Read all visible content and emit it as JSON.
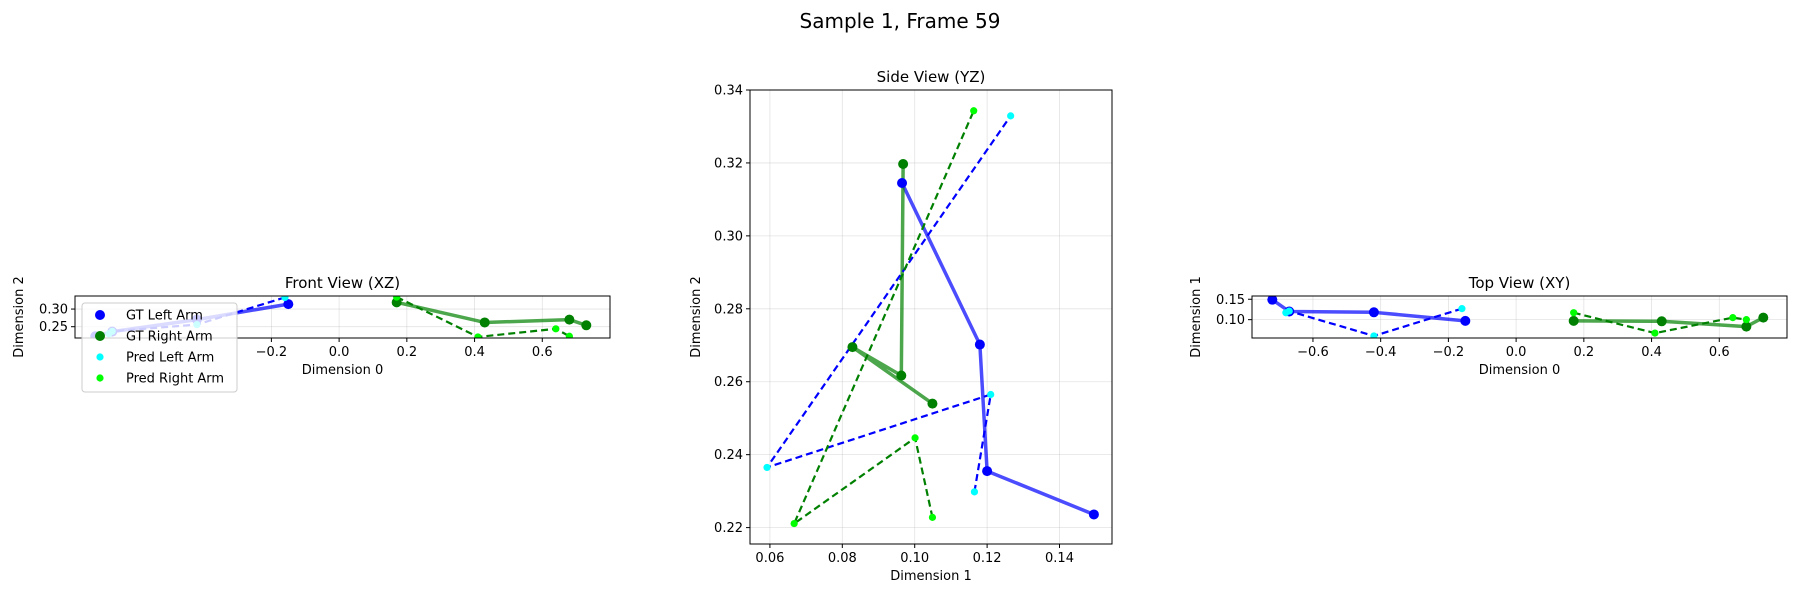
{
  "figure": {
    "suptitle": "Sample 1, Frame 59"
  },
  "colors": {
    "gt_left": "#0000ff",
    "gt_right": "#008000",
    "pred_left": "#00ffff",
    "pred_right": "#00ff00",
    "pred_left_line": "#0000ff",
    "pred_right_line": "#008000"
  },
  "legend": {
    "placement": "upper-left of front view",
    "entries": [
      {
        "label": "GT Left Arm",
        "color": "#0000ff",
        "size": "large"
      },
      {
        "label": "GT Right Arm",
        "color": "#008000",
        "size": "large"
      },
      {
        "label": "Pred Left Arm",
        "color": "#00ffff",
        "size": "small"
      },
      {
        "label": "Pred Right Arm",
        "color": "#00ff00",
        "size": "small"
      }
    ]
  },
  "chart_data": [
    {
      "type": "line",
      "title": "Front View (XZ)",
      "xlabel": "Dimension 0",
      "ylabel": "Dimension 2",
      "xlim": [
        -0.78,
        0.8
      ],
      "ylim": [
        0.218,
        0.337
      ],
      "xticks": [
        -0.2,
        0.0,
        0.2,
        0.4,
        0.6
      ],
      "xtick_labels": [
        "−0.2",
        "0.0",
        "0.2",
        "0.4",
        "0.6"
      ],
      "yticks": [
        0.25,
        0.3
      ],
      "ytick_labels": [
        "0.25",
        "0.30"
      ],
      "grid": true,
      "series": [
        {
          "name": "GT Left Arm",
          "style": "gt",
          "color": "#0000ff",
          "x": [
            -0.15,
            -0.42,
            -0.67,
            -0.72
          ],
          "y": [
            0.314,
            0.27,
            0.236,
            0.223
          ]
        },
        {
          "name": "GT Right Arm",
          "style": "gt",
          "color": "#008000",
          "x": [
            0.17,
            0.43,
            0.68,
            0.73
          ],
          "y": [
            0.319,
            0.262,
            0.27,
            0.254
          ]
        },
        {
          "name": "Pred Left Arm",
          "style": "pred",
          "color": "#00ffff",
          "line_color": "#0000ff",
          "x": [
            -0.16,
            -0.42,
            -0.67,
            -0.68
          ],
          "y": [
            0.333,
            0.256,
            0.237,
            0.23
          ]
        },
        {
          "name": "Pred Right Arm",
          "style": "pred",
          "color": "#00ff00",
          "line_color": "#008000",
          "x": [
            0.17,
            0.41,
            0.64,
            0.68
          ],
          "y": [
            0.334,
            0.221,
            0.244,
            0.223
          ]
        }
      ]
    },
    {
      "type": "line",
      "title": "Side View (YZ)",
      "xlabel": "Dimension 1",
      "ylabel": "Dimension 2",
      "xlim": [
        0.0545,
        0.1545
      ],
      "ylim": [
        0.2155,
        0.34
      ],
      "xticks": [
        0.06,
        0.08,
        0.1,
        0.12,
        0.14
      ],
      "xtick_labels": [
        "0.06",
        "0.08",
        "0.10",
        "0.12",
        "0.14"
      ],
      "yticks": [
        0.22,
        0.24,
        0.26,
        0.28,
        0.3,
        0.32,
        0.34
      ],
      "ytick_labels": [
        "0.22",
        "0.24",
        "0.26",
        "0.28",
        "0.30",
        "0.32",
        "0.34"
      ],
      "grid": true,
      "series": [
        {
          "name": "GT Left Arm",
          "style": "gt",
          "color": "#0000ff",
          "x": [
            0.0965,
            0.118,
            0.12,
            0.1495
          ],
          "y": [
            0.3145,
            0.2702,
            0.2355,
            0.2236
          ]
        },
        {
          "name": "GT Right Arm",
          "style": "gt",
          "color": "#008000",
          "x": [
            0.0968,
            0.0963,
            0.0828,
            0.1049
          ],
          "y": [
            0.3197,
            0.2617,
            0.2695,
            0.254
          ]
        },
        {
          "name": "Pred Left Arm",
          "style": "pred",
          "color": "#00ffff",
          "line_color": "#0000ff",
          "x": [
            0.1165,
            0.121,
            0.0592,
            0.1265
          ],
          "y": [
            0.2298,
            0.2565,
            0.2365,
            0.3329
          ]
        },
        {
          "name": "Pred Right Arm",
          "style": "pred",
          "color": "#00ff00",
          "line_color": "#008000",
          "x": [
            0.1049,
            0.1001,
            0.0667,
            0.1163
          ],
          "y": [
            0.2228,
            0.2446,
            0.2211,
            0.3343
          ]
        }
      ]
    },
    {
      "type": "line",
      "title": "Top View (XY)",
      "xlabel": "Dimension 0",
      "ylabel": "Dimension 1",
      "xlim": [
        -0.78,
        0.8
      ],
      "ylim": [
        0.055,
        0.158
      ],
      "xticks": [
        -0.6,
        -0.4,
        -0.2,
        0.0,
        0.2,
        0.4,
        0.6
      ],
      "xtick_labels": [
        "−0.6",
        "−0.4",
        "−0.2",
        "0.0",
        "0.2",
        "0.4",
        "0.6"
      ],
      "yticks": [
        0.1,
        0.15
      ],
      "ytick_labels": [
        "0.10",
        "0.15"
      ],
      "grid": true,
      "series": [
        {
          "name": "GT Left Arm",
          "style": "gt",
          "color": "#0000ff",
          "x": [
            -0.15,
            -0.42,
            -0.67,
            -0.72
          ],
          "y": [
            0.097,
            0.118,
            0.12,
            0.149
          ]
        },
        {
          "name": "GT Right Arm",
          "style": "gt",
          "color": "#008000",
          "x": [
            0.17,
            0.43,
            0.68,
            0.73
          ],
          "y": [
            0.097,
            0.096,
            0.083,
            0.105
          ]
        },
        {
          "name": "Pred Left Arm",
          "style": "pred",
          "color": "#00ffff",
          "line_color": "#0000ff",
          "x": [
            -0.16,
            -0.42,
            -0.67,
            -0.68
          ],
          "y": [
            0.127,
            0.06,
            0.121,
            0.117
          ]
        },
        {
          "name": "Pred Right Arm",
          "style": "pred",
          "color": "#00ff00",
          "line_color": "#008000",
          "x": [
            0.17,
            0.41,
            0.64,
            0.68
          ],
          "y": [
            0.117,
            0.067,
            0.105,
            0.1
          ]
        }
      ]
    }
  ]
}
